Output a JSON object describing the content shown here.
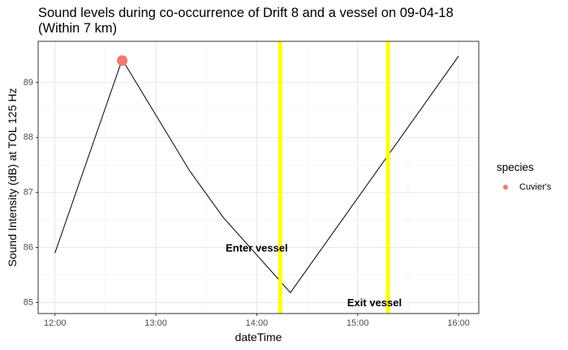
{
  "chart_data": {
    "type": "line",
    "title_line1": "Sound levels during co-occurrence of Drift 8 and a vessel on 09-04-18",
    "title_line2": "(Within 7 km)",
    "xlabel": "dateTime",
    "ylabel": "Sound Intensity (dB) at TOL 125 Hz",
    "xlim": [
      "11:50",
      "16:12"
    ],
    "ylim": [
      84.8,
      89.75
    ],
    "x_ticks": [
      "12:00",
      "13:00",
      "14:00",
      "15:00",
      "16:00"
    ],
    "y_ticks": [
      85,
      86,
      87,
      88,
      89
    ],
    "grid": true,
    "series": [
      {
        "x": [
          "12:00",
          "12:40",
          "13:20",
          "13:40",
          "14:20",
          "16:00"
        ],
        "y": [
          85.9,
          89.42,
          87.4,
          86.55,
          85.18,
          89.48
        ],
        "color": "#000000"
      }
    ],
    "points": [
      {
        "x": "12:40",
        "y": 89.4,
        "species": "Cuvier's",
        "color": "#F8766D"
      }
    ],
    "vlines": [
      {
        "x": "14:14",
        "color": "#FFFF00"
      },
      {
        "x": "15:18",
        "color": "#FFFF00"
      }
    ],
    "annotations": [
      {
        "text": "Enter vessel",
        "x": "14:00",
        "y": 85.98
      },
      {
        "text": "Exit vessel",
        "x": "15:10",
        "y": 84.98
      }
    ],
    "legend": {
      "title": "species",
      "entries": [
        {
          "label": "Cuvier's",
          "color": "#F8766D"
        }
      ],
      "position": "right"
    }
  }
}
